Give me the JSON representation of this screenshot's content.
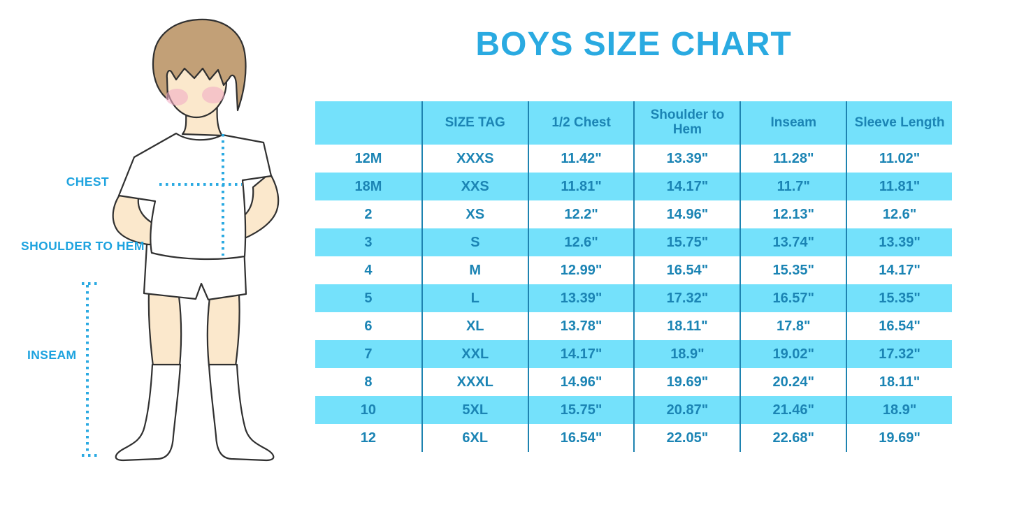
{
  "title": "BOYS SIZE CHART",
  "figure": {
    "description": "outline illustration of a boy in white t-shirt, shorts and knee socks with dotted measurement guides",
    "chest_label": "CHEST",
    "shoulder_to_hem_label": "SHOULDER TO HEM",
    "inseam_label": "INSEAM"
  },
  "chart_data": {
    "type": "table",
    "title": "BOYS SIZE CHART",
    "columns": [
      "",
      "SIZE TAG",
      "1/2 Chest",
      "Shoulder to Hem",
      "Inseam",
      "Sleeve Length"
    ],
    "rows": [
      [
        "12M",
        "XXXS",
        "11.42\"",
        "13.39\"",
        "11.28\"",
        "11.02\""
      ],
      [
        "18M",
        "XXS",
        "11.81\"",
        "14.17\"",
        "11.7\"",
        "11.81\""
      ],
      [
        "2",
        "XS",
        "12.2\"",
        "14.96\"",
        "12.13\"",
        "12.6\""
      ],
      [
        "3",
        "S",
        "12.6\"",
        "15.75\"",
        "13.74\"",
        "13.39\""
      ],
      [
        "4",
        "M",
        "12.99\"",
        "16.54\"",
        "15.35\"",
        "14.17\""
      ],
      [
        "5",
        "L",
        "13.39\"",
        "17.32\"",
        "16.57\"",
        "15.35\""
      ],
      [
        "6",
        "XL",
        "13.78\"",
        "18.11\"",
        "17.8\"",
        "16.54\""
      ],
      [
        "7",
        "XXL",
        "14.17\"",
        "18.9\"",
        "19.02\"",
        "17.32\""
      ],
      [
        "8",
        "XXXL",
        "14.96\"",
        "19.69\"",
        "20.24\"",
        "18.11\""
      ],
      [
        "10",
        "5XL",
        "15.75\"",
        "20.87\"",
        "21.46\"",
        "18.9\""
      ],
      [
        "12",
        "6XL",
        "16.54\"",
        "22.05\"",
        "22.68\"",
        "19.69\""
      ]
    ],
    "layout": {
      "header_background": "#74E1FB",
      "row_striping": "white / light-blue alternating, first data row white",
      "grid": "vertical dividers only, no outer border",
      "legend_position": "none"
    }
  },
  "colors": {
    "stripe_blue": "#74E1FB",
    "table_text_blue": "#1B84B4",
    "divider_blue": "#1E83B0",
    "title_cyan": "#2AAAE1",
    "label_cyan": "#1EA3DF",
    "dotted_line_cyan": "#2BAAE2",
    "skin": "#FBE8CC",
    "hair_brown": "#C2A077",
    "cheek_pink": "#F2AEC4",
    "outline": "#303030"
  }
}
